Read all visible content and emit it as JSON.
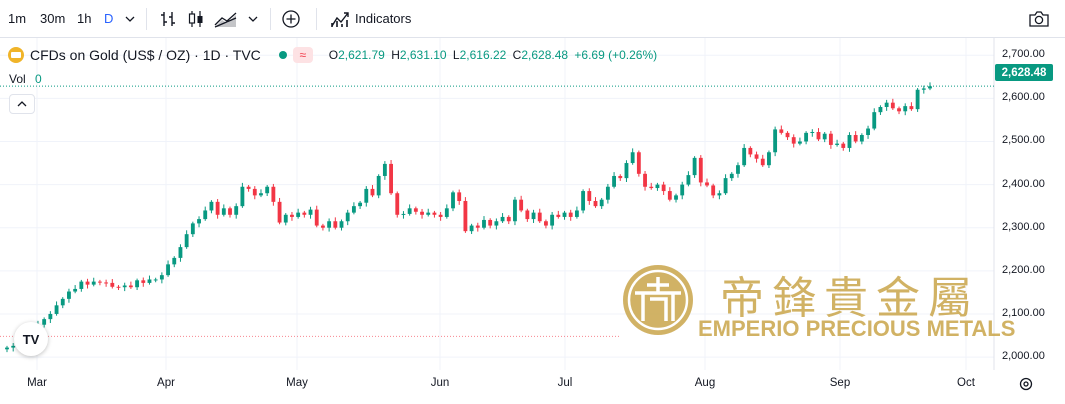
{
  "toolbar": {
    "timeframes": [
      "1m",
      "30m",
      "1h",
      "D"
    ],
    "active_timeframe": "D",
    "indicators_label": "Indicators"
  },
  "legend": {
    "symbol": "CFDs on Gold (US$ / OZ) · 1D · TVC",
    "open_key": "O",
    "open": "2,621.79",
    "high_key": "H",
    "high": "2,631.10",
    "low_key": "L",
    "low": "2,616.22",
    "close_key": "C",
    "close": "2,628.48",
    "change": "+6.69 (+0.26%)",
    "vol_label": "Vol",
    "vol_value": "0"
  },
  "price_label": "2,628.48",
  "watermark": {
    "chinese": "帝鋒貴金屬",
    "english": "EMPERIO PRECIOUS METALS"
  },
  "colors": {
    "up": "#089981",
    "down": "#f23645",
    "watermark": "#c9a54a"
  },
  "chart_data": {
    "type": "candlestick",
    "ylim": [
      1970,
      2740
    ],
    "y_ticks": [
      "2,700.00",
      "2,600.00",
      "2,500.00",
      "2,400.00",
      "2,300.00",
      "2,200.00",
      "2,100.00",
      "2,000.00"
    ],
    "x_ticks": [
      "Mar",
      "Apr",
      "May",
      "Jun",
      "Jul",
      "Aug",
      "Sep",
      "Oct"
    ],
    "last_close": 2628.48,
    "reference_line": 2048,
    "closes": [
      2022,
      2026,
      2030,
      2035,
      2050,
      2075,
      2088,
      2100,
      2120,
      2135,
      2152,
      2158,
      2175,
      2168,
      2175,
      2173,
      2172,
      2163,
      2162,
      2166,
      2162,
      2178,
      2172,
      2180,
      2180,
      2190,
      2215,
      2230,
      2255,
      2285,
      2310,
      2320,
      2340,
      2360,
      2330,
      2345,
      2330,
      2350,
      2395,
      2390,
      2375,
      2380,
      2395,
      2360,
      2312,
      2330,
      2325,
      2335,
      2330,
      2342,
      2305,
      2300,
      2315,
      2300,
      2315,
      2335,
      2350,
      2358,
      2390,
      2375,
      2420,
      2448,
      2380,
      2330,
      2332,
      2345,
      2337,
      2330,
      2335,
      2330,
      2325,
      2345,
      2382,
      2362,
      2292,
      2305,
      2300,
      2318,
      2305,
      2315,
      2325,
      2315,
      2365,
      2340,
      2320,
      2335,
      2315,
      2305,
      2330,
      2325,
      2335,
      2325,
      2340,
      2385,
      2362,
      2350,
      2365,
      2395,
      2420,
      2415,
      2450,
      2475,
      2425,
      2395,
      2392,
      2400,
      2385,
      2365,
      2375,
      2400,
      2422,
      2462,
      2405,
      2398,
      2375,
      2380,
      2415,
      2425,
      2445,
      2485,
      2470,
      2460,
      2445,
      2475,
      2528,
      2520,
      2510,
      2495,
      2500,
      2520,
      2522,
      2505,
      2518,
      2492,
      2495,
      2485,
      2515,
      2500,
      2515,
      2530,
      2568,
      2580,
      2590,
      2577,
      2570,
      2582,
      2575,
      2620,
      2623,
      2628
    ]
  }
}
